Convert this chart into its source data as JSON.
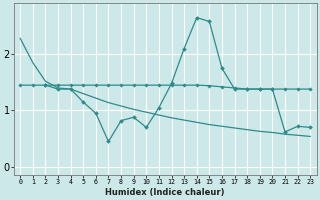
{
  "x": [
    0,
    1,
    2,
    3,
    4,
    5,
    6,
    7,
    8,
    9,
    10,
    11,
    12,
    13,
    14,
    15,
    16,
    17,
    18,
    19,
    20,
    21,
    22,
    23
  ],
  "line_wavy": [
    null,
    null,
    1.45,
    1.38,
    1.38,
    1.15,
    0.95,
    0.45,
    0.82,
    0.88,
    0.7,
    1.05,
    1.48,
    2.1,
    2.65,
    2.58,
    1.75,
    1.38,
    1.38,
    1.38,
    1.38,
    0.62,
    0.72,
    0.7
  ],
  "line_flat": [
    1.45,
    1.45,
    1.45,
    1.45,
    1.45,
    1.45,
    1.45,
    1.45,
    1.45,
    1.45,
    1.45,
    1.45,
    1.45,
    1.45,
    1.45,
    1.44,
    1.42,
    1.4,
    1.38,
    1.38,
    1.38,
    1.38,
    1.38,
    1.38
  ],
  "line_diag": [
    2.28,
    1.85,
    1.52,
    1.4,
    1.38,
    1.3,
    1.22,
    1.14,
    1.08,
    1.02,
    0.97,
    0.92,
    0.87,
    0.83,
    0.79,
    0.75,
    0.72,
    0.69,
    0.66,
    0.63,
    0.61,
    0.58,
    0.56,
    0.54
  ],
  "background_color": "#cde8e8",
  "line_color": "#2e8b8b",
  "grid_color": "#ffffff",
  "xlabel": "Humidex (Indice chaleur)",
  "yticks": [
    0,
    1,
    2
  ],
  "ylim": [
    -0.15,
    2.9
  ],
  "xlim": [
    -0.5,
    23.5
  ]
}
